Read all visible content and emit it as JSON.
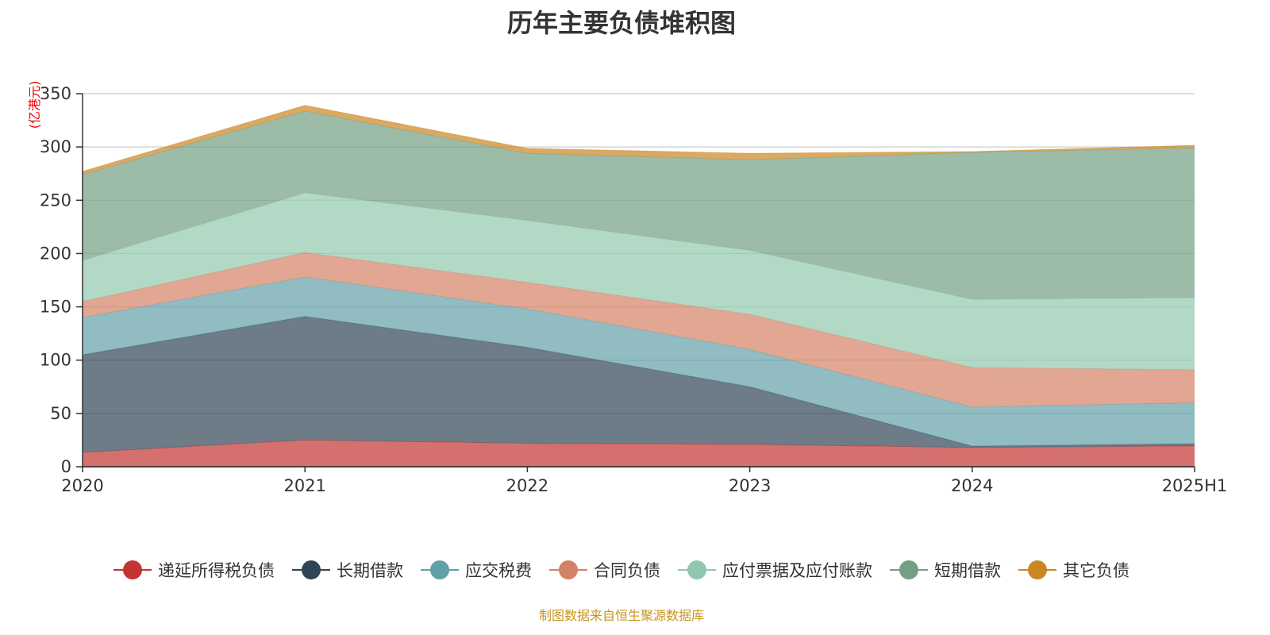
{
  "chart_data": {
    "type": "area",
    "stacked": true,
    "title": "历年主要负债堆积图",
    "ylabel": "(亿港元)",
    "xlabel": "",
    "ylim": [
      0,
      350
    ],
    "yticks": [
      0,
      50,
      100,
      150,
      200,
      250,
      300,
      350
    ],
    "categories": [
      "2020",
      "2021",
      "2022",
      "2023",
      "2024",
      "2025H1"
    ],
    "grid": true,
    "legend_placement": "bottom",
    "series": [
      {
        "name": "递延所得税负债",
        "color": "#c23531",
        "values": [
          13.4,
          25,
          22,
          21,
          18,
          19.4
        ]
      },
      {
        "name": "长期借款",
        "color": "#2f4554",
        "values": [
          91.6,
          116,
          90,
          54,
          1.4,
          2.2
        ]
      },
      {
        "name": "应交税费",
        "color": "#61a0a8",
        "values": [
          35,
          37,
          36,
          35,
          36.6,
          38.4
        ]
      },
      {
        "name": "合同负债",
        "color": "#d48265",
        "values": [
          15,
          23,
          25,
          33,
          37,
          31
        ]
      },
      {
        "name": "应付票据及应付账款",
        "color": "#91c7ae",
        "values": [
          38.6,
          56,
          58,
          60,
          64,
          67.6
        ]
      },
      {
        "name": "短期借款",
        "color": "#749f83",
        "values": [
          80.4,
          76.6,
          63,
          85,
          138,
          140.4
        ]
      },
      {
        "name": "其它负债",
        "color": "#ca8622",
        "values": [
          3,
          5.4,
          4.6,
          6,
          0.6,
          2.5
        ]
      }
    ]
  },
  "footer": {
    "source": "制图数据来自恒生聚源数据库"
  }
}
